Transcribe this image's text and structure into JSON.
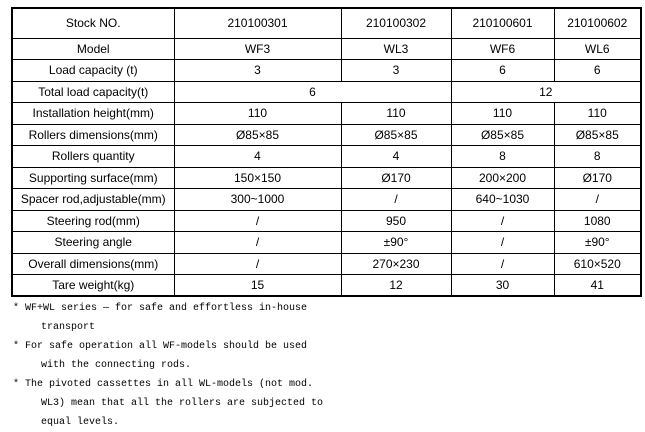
{
  "table": {
    "rows": [
      {
        "label": "Stock NO.",
        "values": [
          "210100301",
          "210100302",
          "210100601",
          "210100602"
        ]
      },
      {
        "label": "Model",
        "values": [
          "WF3",
          "WL3",
          "WF6",
          "WL6"
        ]
      },
      {
        "label": "Load capacity (t)",
        "values": [
          "3",
          "3",
          "6",
          "6"
        ]
      },
      {
        "label": "Total load capacity(t)",
        "values": [
          "6",
          "12"
        ],
        "colspan": 2
      },
      {
        "label": "Installation height(mm)",
        "values": [
          "110",
          "110",
          "110",
          "110"
        ]
      },
      {
        "label": "Rollers dimensions(mm)",
        "values": [
          "Ø85×85",
          "Ø85×85",
          "Ø85×85",
          "Ø85×85"
        ]
      },
      {
        "label": "Rollers quantity",
        "values": [
          "4",
          "4",
          "8",
          "8"
        ]
      },
      {
        "label": "Supporting surface(mm)",
        "values": [
          "150×150",
          "Ø170",
          "200×200",
          "Ø170"
        ]
      },
      {
        "label": "Spacer rod,adjustable(mm)",
        "values": [
          "300~1000",
          "/",
          "640~1030",
          "/"
        ]
      },
      {
        "label": "Steering rod(mm)",
        "values": [
          "/",
          "950",
          "/",
          "1080"
        ]
      },
      {
        "label": "Steering angle",
        "values": [
          "/",
          "±90°",
          "/",
          "±90°"
        ]
      },
      {
        "label": "Overall dimensions(mm)",
        "values": [
          "/",
          "270×230",
          "/",
          "610×520"
        ]
      },
      {
        "label": "Tare weight(kg)",
        "values": [
          "15",
          "12",
          "30",
          "41"
        ]
      }
    ]
  },
  "footnotes": {
    "marker": "*",
    "items": [
      {
        "lines": [
          "WF+WL series — for safe and effortless in-house",
          "transport"
        ]
      },
      {
        "lines": [
          "For safe operation all WF-models should be used",
          "with the connecting rods."
        ]
      },
      {
        "lines": [
          "The pivoted cassettes in all WL-models (not mod.",
          "WL3) mean that all the rollers are subjected to",
          "equal levels."
        ]
      }
    ]
  },
  "colors": {
    "border": "#000000",
    "text": "#000000",
    "background": "#ffffff"
  }
}
